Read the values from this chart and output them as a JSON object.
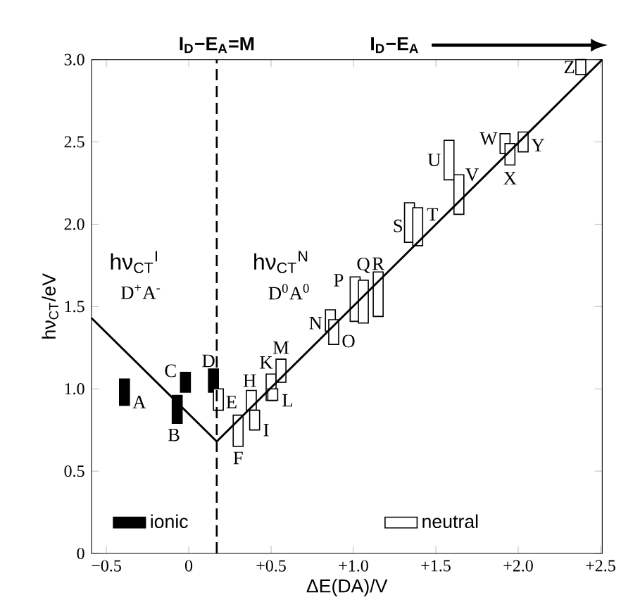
{
  "chart_data": {
    "type": "bar",
    "xlabel": "ΔE(DA)/V",
    "ylabel": "hν$_{CT}$/eV",
    "xlim": [
      -0.59,
      2.51
    ],
    "ylim": [
      0,
      3.0
    ],
    "xticks": [
      {
        "value": -0.5,
        "label": "−0.5"
      },
      0,
      {
        "value": 0.5,
        "label": "+0.5"
      },
      {
        "value": 1.0,
        "label": "+1.0"
      },
      {
        "value": 1.5,
        "label": "+1.5"
      },
      {
        "value": 2.0,
        "label": "+2.0"
      },
      {
        "value": 2.5,
        "label": "+2.5"
      }
    ],
    "yticks": [
      0,
      0.5,
      {
        "value": 1.0,
        "label": "1.0"
      },
      {
        "value": 1.5,
        "label": "1.5"
      },
      {
        "value": 2.0,
        "label": "2.0"
      },
      {
        "value": 2.5,
        "label": "2.5"
      },
      {
        "value": 3.0,
        "label": "3.0"
      }
    ],
    "series": [
      {
        "name": "ionic",
        "color": "#000000",
        "x": [
          -0.39,
          -0.07,
          -0.02,
          0.15
        ],
        "base": [
          0.9,
          0.79,
          0.98,
          0.98
        ],
        "values": [
          0.16,
          0.17,
          0.12,
          0.14
        ],
        "value_labels": [
          "A",
          "B",
          "C",
          "D"
        ]
      },
      {
        "name": "neutral",
        "color": "#ffffff",
        "x": [
          0.18,
          0.3,
          0.38,
          0.4,
          0.5,
          0.51,
          0.56,
          0.86,
          0.88,
          1.01,
          1.06,
          1.15,
          1.34,
          1.39,
          1.58,
          1.64,
          1.92,
          1.95,
          2.03,
          2.38
        ],
        "base": [
          0.87,
          0.65,
          0.87,
          0.75,
          0.93,
          0.93,
          1.04,
          1.35,
          1.27,
          1.41,
          1.4,
          1.44,
          1.89,
          1.87,
          2.27,
          2.06,
          2.43,
          2.36,
          2.44,
          2.91
        ],
        "values": [
          0.13,
          0.19,
          0.12,
          0.12,
          0.16,
          0.07,
          0.14,
          0.13,
          0.15,
          0.27,
          0.26,
          0.27,
          0.24,
          0.23,
          0.24,
          0.24,
          0.12,
          0.13,
          0.12,
          0.09
        ],
        "value_labels": [
          "E",
          "F",
          "H",
          "I",
          "K",
          "L",
          "M",
          "N",
          "O",
          "P",
          "Q",
          "R",
          "S",
          "T",
          "U",
          "V",
          "W",
          "X",
          "Y",
          "Z"
        ]
      },
      {
        "type": "line",
        "color": "#000000",
        "x": [
          -0.59,
          0.17,
          2.51
        ],
        "values": [
          1.43,
          0.68,
          3.0
        ]
      }
    ],
    "ref_lines": [
      {
        "axis": "x",
        "value": 0.17,
        "label": "I$_{D}$−E$_{A}$=M",
        "line_style": "dashed",
        "color": "#000000"
      }
    ],
    "annotations": [
      "hν$_{CT}$$^{I}$",
      "D$^{+}$A$^{-}$",
      "hν$_{CT}$$^{N}$",
      "D$^{0}$A$^{0}$",
      "I$_{D}$−E$_{A}$"
    ],
    "legend": "bottom",
    "grid": false,
    "marker": "none"
  }
}
